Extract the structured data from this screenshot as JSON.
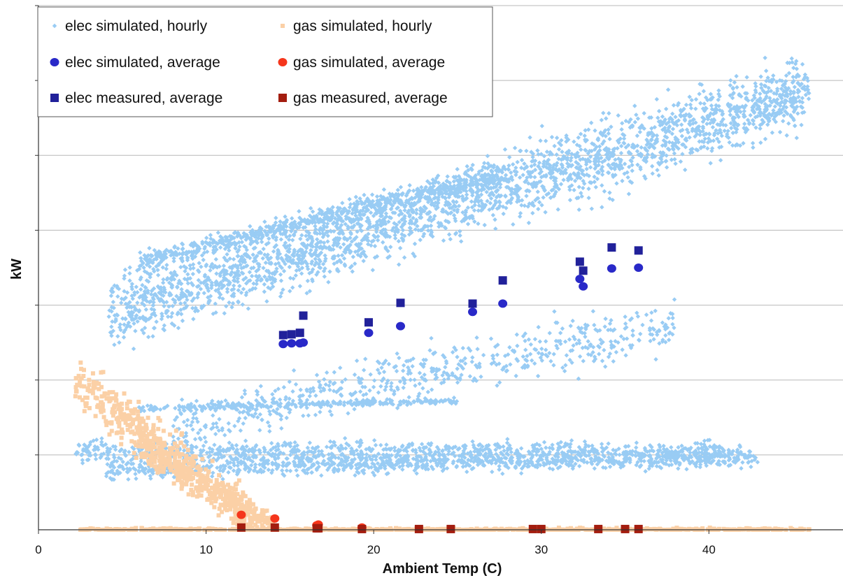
{
  "chart_data": {
    "type": "scatter",
    "title": "",
    "xlabel": "Ambient Temp (C)",
    "ylabel": "kW",
    "xlim": [
      0,
      48
    ],
    "ylim": [
      0,
      7
    ],
    "xticks": [
      "0",
      "10",
      "20",
      "30",
      "40"
    ],
    "xtick_values": [
      0,
      10,
      20,
      30,
      40
    ],
    "y_gridlines": [
      1,
      2,
      3,
      4,
      5,
      6,
      7
    ],
    "y_tick_labels_shown": false,
    "grid": "horizontal",
    "legend_position": "top-left",
    "colors": {
      "elec_hourly": "#99ccf4",
      "gas_hourly": "#fbd0a6",
      "elec_sim_avg": "#2929c8",
      "gas_sim_avg": "#f5361c",
      "elec_meas_avg": "#21219a",
      "gas_meas_avg": "#a31d0f"
    },
    "series": [
      {
        "name": "elec simulated, hourly",
        "marker": "diamond-small",
        "clusters": [
          {
            "x": [
              4.2,
              46
            ],
            "y_start": 2.9,
            "y_end": 5.85,
            "spread": 0.22,
            "count": 2600
          },
          {
            "x": [
              6,
              28
            ],
            "y_start": 3.58,
            "y_end": 4.75,
            "spread": 0.06,
            "count": 700
          },
          {
            "x": [
              6,
              25
            ],
            "y_start": 1.62,
            "y_end": 1.72,
            "spread": 0.02,
            "count": 260
          },
          {
            "x": [
              8,
              38
            ],
            "y_start": 1.4,
            "y_end": 2.75,
            "spread": 0.16,
            "count": 600
          },
          {
            "x": [
              2.2,
              42
            ],
            "y_start": 1.06,
            "y_end": 1.02,
            "spread": 0.07,
            "count": 900
          },
          {
            "x": [
              4,
              43
            ],
            "y_start": 0.8,
            "y_end": 0.98,
            "spread": 0.06,
            "count": 900
          }
        ]
      },
      {
        "name": "gas simulated, hourly",
        "marker": "square-small",
        "clusters": [
          {
            "x": [
              2.2,
              13
            ],
            "y_start": 2.0,
            "y_end": 0.1,
            "spread": 0.16,
            "count": 450
          },
          {
            "x": [
              6,
              14
            ],
            "y_start": 1.1,
            "y_end": 0.05,
            "spread": 0.1,
            "count": 260
          },
          {
            "x": [
              2.5,
              46
            ],
            "y_start": 0.0,
            "y_end": 0.0,
            "spread": 0.01,
            "count": 700
          }
        ]
      },
      {
        "name": "elec simulated, average",
        "marker": "circle",
        "points": [
          [
            14.6,
            2.48
          ],
          [
            15.1,
            2.49
          ],
          [
            15.6,
            2.49
          ],
          [
            15.8,
            2.5
          ],
          [
            19.7,
            2.63
          ],
          [
            21.6,
            2.72
          ],
          [
            25.9,
            2.91
          ],
          [
            27.7,
            3.02
          ],
          [
            32.3,
            3.35
          ],
          [
            32.5,
            3.25
          ],
          [
            34.2,
            3.49
          ],
          [
            35.8,
            3.5
          ]
        ]
      },
      {
        "name": "gas simulated, average",
        "marker": "circle",
        "points": [
          [
            12.1,
            0.2
          ],
          [
            14.1,
            0.15
          ],
          [
            16.6,
            0.06
          ],
          [
            16.7,
            0.07
          ],
          [
            19.3,
            0.03
          ]
        ]
      },
      {
        "name": "elec measured, average",
        "marker": "square",
        "points": [
          [
            14.6,
            2.6
          ],
          [
            15.1,
            2.61
          ],
          [
            15.6,
            2.63
          ],
          [
            15.8,
            2.86
          ],
          [
            19.7,
            2.77
          ],
          [
            21.6,
            3.03
          ],
          [
            25.9,
            3.02
          ],
          [
            27.7,
            3.33
          ],
          [
            32.3,
            3.58
          ],
          [
            32.5,
            3.46
          ],
          [
            34.2,
            3.77
          ],
          [
            35.8,
            3.73
          ]
        ]
      },
      {
        "name": "gas measured, average",
        "marker": "square",
        "points": [
          [
            12.1,
            0.03
          ],
          [
            14.1,
            0.03
          ],
          [
            16.6,
            0.02
          ],
          [
            16.7,
            0.02
          ],
          [
            19.3,
            0.01
          ],
          [
            22.7,
            0.01
          ],
          [
            24.6,
            0.01
          ],
          [
            29.5,
            0.01
          ],
          [
            30.0,
            0.01
          ],
          [
            33.4,
            0.01
          ],
          [
            35.0,
            0.01
          ],
          [
            35.8,
            0.01
          ]
        ]
      }
    ]
  }
}
